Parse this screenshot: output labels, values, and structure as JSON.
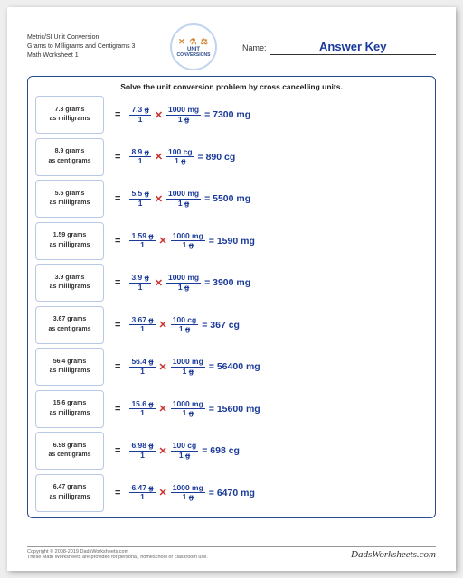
{
  "header": {
    "title_l1": "Metric/SI Unit Conversion",
    "title_l2": "Grams to Milligrams and Centigrams 3",
    "title_l3": "Math Worksheet 1",
    "badge_top": "✕ ⚗ ⚖",
    "badge_l1": "UNIT",
    "badge_l2": "CONVERSIONS",
    "name_label": "Name:",
    "name_value": "Answer Key"
  },
  "instruction": "Solve the unit conversion problem by cross cancelling units.",
  "problems": [
    {
      "val": "7.3",
      "from": "grams",
      "to": "milligrams",
      "num1": "7.3 g",
      "factor_n": "1000 mg",
      "factor_d": "1 g",
      "ans": "7300 mg"
    },
    {
      "val": "8.9",
      "from": "grams",
      "to": "centigrams",
      "num1": "8.9 g",
      "factor_n": "100 cg",
      "factor_d": "1 g",
      "ans": "890 cg"
    },
    {
      "val": "5.5",
      "from": "grams",
      "to": "milligrams",
      "num1": "5.5 g",
      "factor_n": "1000 mg",
      "factor_d": "1 g",
      "ans": "5500 mg"
    },
    {
      "val": "1.59",
      "from": "grams",
      "to": "milligrams",
      "num1": "1.59 g",
      "factor_n": "1000 mg",
      "factor_d": "1 g",
      "ans": "1590 mg"
    },
    {
      "val": "3.9",
      "from": "grams",
      "to": "milligrams",
      "num1": "3.9 g",
      "factor_n": "1000 mg",
      "factor_d": "1 g",
      "ans": "3900 mg"
    },
    {
      "val": "3.67",
      "from": "grams",
      "to": "centigrams",
      "num1": "3.67 g",
      "factor_n": "100 cg",
      "factor_d": "1 g",
      "ans": "367 cg"
    },
    {
      "val": "56.4",
      "from": "grams",
      "to": "milligrams",
      "num1": "56.4 g",
      "factor_n": "1000 mg",
      "factor_d": "1 g",
      "ans": "56400 mg"
    },
    {
      "val": "15.6",
      "from": "grams",
      "to": "milligrams",
      "num1": "15.6 g",
      "factor_n": "1000 mg",
      "factor_d": "1 g",
      "ans": "15600 mg"
    },
    {
      "val": "6.98",
      "from": "grams",
      "to": "centigrams",
      "num1": "6.98 g",
      "factor_n": "100 cg",
      "factor_d": "1 g",
      "ans": "698 cg"
    },
    {
      "val": "6.47",
      "from": "grams",
      "to": "milligrams",
      "num1": "6.47 g",
      "factor_n": "1000 mg",
      "factor_d": "1 g",
      "ans": "6470 mg"
    }
  ],
  "footer": {
    "copyright": "Copyright © 2008-2019 DadsWorksheets.com",
    "note": "These Math Worksheets are provided for personal, homeschool or classroom use.",
    "brand": "DadsWorksheets.com"
  }
}
